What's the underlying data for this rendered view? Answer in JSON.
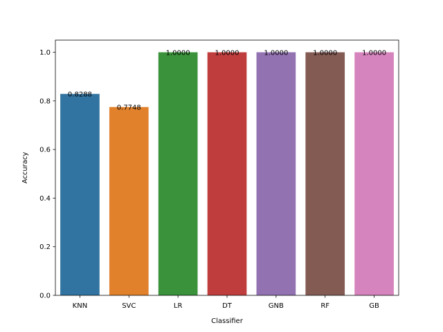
{
  "chart_data": {
    "type": "bar",
    "title": "",
    "xlabel": "Classifier",
    "ylabel": "Accuracy",
    "categories": [
      "KNN",
      "SVC",
      "LR",
      "DT",
      "GNB",
      "RF",
      "GB"
    ],
    "values": [
      0.8288,
      0.7748,
      1.0,
      1.0,
      1.0,
      1.0,
      1.0
    ],
    "data_labels": [
      "0.8288",
      "0.7748",
      "1.0000",
      "1.0000",
      "1.0000",
      "1.0000",
      "1.0000"
    ],
    "colors": [
      "#3274a1",
      "#e1812c",
      "#3a923a",
      "#c03d3e",
      "#9372b2",
      "#845b53",
      "#d684bd"
    ],
    "ylim": [
      0,
      1.05
    ],
    "yticks": [
      0.0,
      0.2,
      0.4,
      0.6,
      0.8,
      1.0
    ],
    "ytick_labels": [
      "0.0",
      "0.2",
      "0.4",
      "0.6",
      "0.8",
      "1.0"
    ],
    "grid": false,
    "legend": "none"
  }
}
